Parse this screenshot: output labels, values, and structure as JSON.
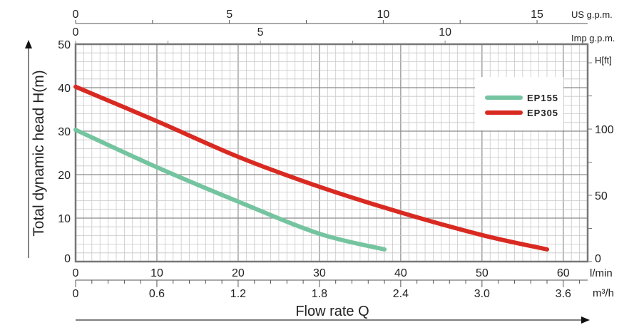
{
  "chart_data": {
    "type": "line",
    "title": "",
    "xlabel": "Flow rate Q",
    "ylabel": "Total dynamic head H(m)",
    "xlim": [
      0,
      63
    ],
    "ylim": [
      0,
      50
    ],
    "grid": true,
    "legend_position": "top-right",
    "x_unit": "l/min",
    "y_unit": "",
    "x_ticks": [
      0,
      10,
      20,
      30,
      40,
      50,
      60
    ],
    "y_ticks": [
      0,
      10,
      20,
      30,
      40,
      50
    ],
    "secondary_axes": {
      "us_gpm": {
        "label": "US g.p.m.",
        "ticks": [
          "0",
          "5",
          "10",
          "15"
        ],
        "values": [
          0,
          5,
          10,
          15
        ]
      },
      "imp_gpm": {
        "label": "Imp g.p.m.",
        "ticks": [
          "0",
          "5",
          "10"
        ],
        "values": [
          0,
          5,
          10
        ]
      },
      "m3h": {
        "label": "m³/h",
        "ticks": [
          "0",
          "0.6",
          "1.2",
          "1.8",
          "2.4",
          "3.0",
          "3.6"
        ],
        "values": [
          0,
          0.6,
          1.2,
          1.8,
          2.4,
          3.0,
          3.6
        ]
      },
      "h_ft": {
        "label": "H[ft]",
        "ticks": [
          "0",
          "50",
          "100"
        ],
        "values": [
          0,
          50,
          100
        ]
      }
    },
    "series": [
      {
        "name": "EP155",
        "color": "#74c4a0",
        "x": [
          0,
          10,
          20,
          30,
          38
        ],
        "y": [
          30.3,
          21.7,
          13.8,
          6.4,
          2.8
        ]
      },
      {
        "name": "EP305",
        "color": "#d92a22",
        "x": [
          0,
          10,
          20,
          30,
          40,
          50,
          58
        ],
        "y": [
          40.2,
          32.3,
          24.1,
          17.2,
          11.3,
          6.1,
          2.8
        ]
      }
    ]
  }
}
